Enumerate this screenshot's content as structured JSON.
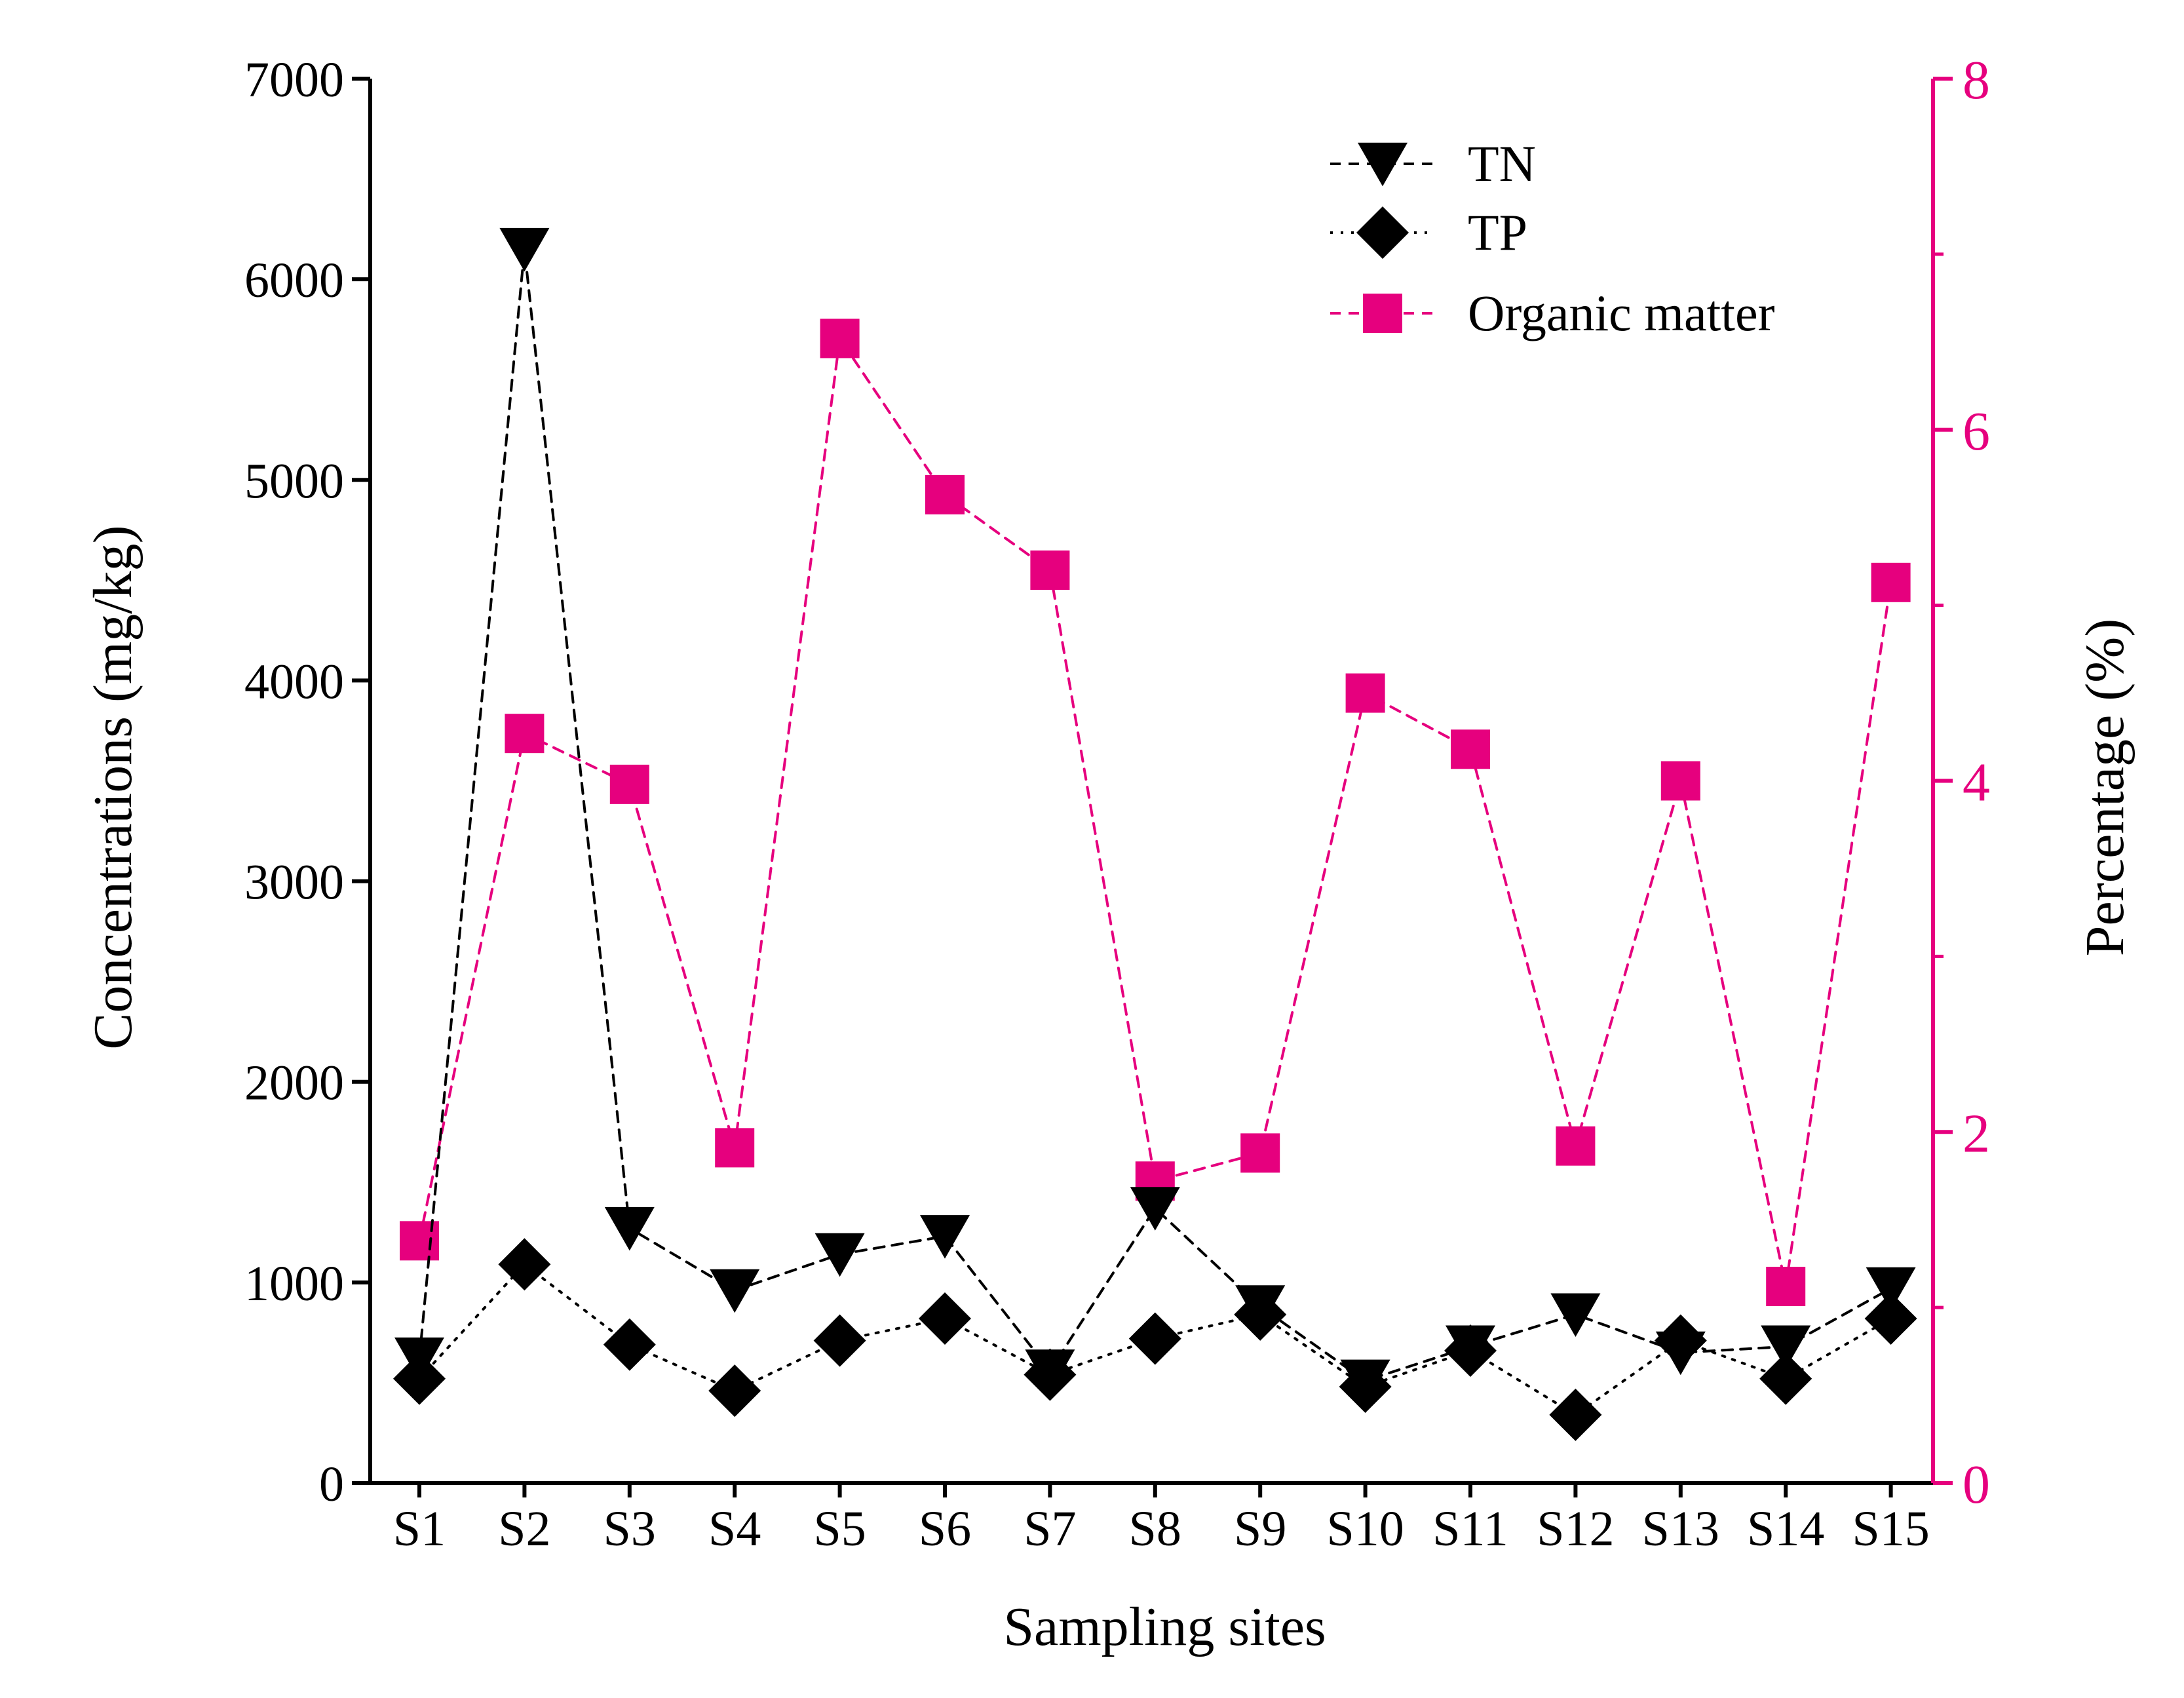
{
  "chart_data": {
    "type": "line",
    "title": "",
    "xlabel": "Sampling sites",
    "ylabel": "Concentrations (mg/kg)",
    "y2label": "Percentage (%)",
    "categories": [
      "S1",
      "S2",
      "S3",
      "S4",
      "S5",
      "S6",
      "S7",
      "S8",
      "S9",
      "S10",
      "S11",
      "S12",
      "S13",
      "S14",
      "S15"
    ],
    "ylim": [
      0,
      7000
    ],
    "y_ticks": [
      0,
      1000,
      2000,
      3000,
      4000,
      5000,
      6000,
      7000
    ],
    "y2lim": [
      0,
      8
    ],
    "y2_ticks": [
      0,
      2,
      4,
      6,
      8
    ],
    "legend_position": "top-right",
    "series": [
      {
        "name": "TN",
        "axis": "left",
        "marker": "triangle-down",
        "line": "dashed",
        "color": "#000000",
        "values": [
          620,
          6150,
          1270,
          960,
          1140,
          1230,
          560,
          1370,
          880,
          510,
          680,
          840,
          650,
          680,
          970
        ]
      },
      {
        "name": "TP",
        "axis": "left",
        "marker": "diamond",
        "line": "dotted",
        "color": "#000000",
        "values": [
          520,
          1090,
          690,
          460,
          710,
          820,
          540,
          720,
          840,
          480,
          660,
          340,
          710,
          520,
          820
        ]
      },
      {
        "name": "Organic matter",
        "axis": "right",
        "marker": "square",
        "line": "dashed",
        "color": "#e6007e",
        "values": [
          1.38,
          4.27,
          3.98,
          1.91,
          6.52,
          5.63,
          5.2,
          1.72,
          1.88,
          4.5,
          4.18,
          1.92,
          4.0,
          1.12,
          5.13
        ]
      }
    ]
  },
  "colors": {
    "accent": "#e6007e",
    "axis": "#000000"
  }
}
